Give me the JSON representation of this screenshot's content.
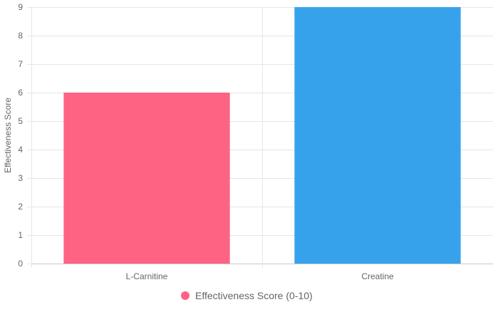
{
  "chart_data": {
    "type": "bar",
    "categories": [
      "L-Carnitine",
      "Creatine"
    ],
    "series": [
      {
        "name": "Effectiveness Score (0-10)",
        "values": [
          6,
          9
        ],
        "colors": [
          "#ff6384",
          "#36a2eb"
        ]
      }
    ],
    "xlabel": "",
    "ylabel": "Effectiveness Score",
    "ylim": [
      0,
      9
    ],
    "yticks": [
      0,
      1,
      2,
      3,
      4,
      5,
      6,
      7,
      8,
      9
    ],
    "grid": true,
    "legend": {
      "position": "bottom",
      "label": "Effectiveness Score (0-10)",
      "marker_color": "#ff6384"
    }
  }
}
